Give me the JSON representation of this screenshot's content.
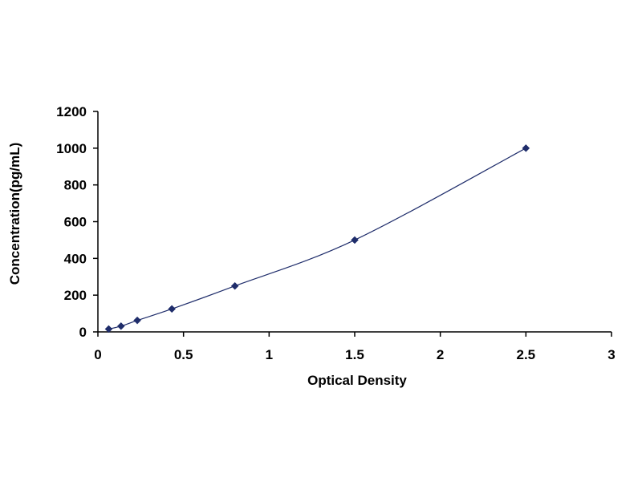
{
  "chart_data": {
    "type": "scatter",
    "title": "",
    "xlabel": "Optical Density",
    "ylabel": "Concentration(pg/mL)",
    "xlim": [
      0,
      3
    ],
    "ylim": [
      0,
      1200
    ],
    "x_ticks": [
      0,
      0.5,
      1,
      1.5,
      2,
      2.5,
      3
    ],
    "x_tick_labels": [
      "0",
      "0.5",
      "1",
      "1.5",
      "2",
      "2.5",
      "3"
    ],
    "y_ticks": [
      0,
      200,
      400,
      600,
      800,
      1000,
      1200
    ],
    "y_tick_labels": [
      "0",
      "200",
      "400",
      "600",
      "800",
      "1000",
      "1200"
    ],
    "grid": false,
    "legend": "none",
    "series": [
      {
        "points": [
          {
            "x": 0.063,
            "y": 15.6
          },
          {
            "x": 0.135,
            "y": 31.3
          },
          {
            "x": 0.23,
            "y": 62.5
          },
          {
            "x": 0.432,
            "y": 125
          },
          {
            "x": 0.8,
            "y": 250
          },
          {
            "x": 1.5,
            "y": 500
          },
          {
            "x": 2.5,
            "y": 1000
          }
        ],
        "marker": "diamond",
        "marker_color": "#1f2d6b",
        "fit_line": "smooth",
        "line_color": "#1f2d6b"
      }
    ]
  }
}
